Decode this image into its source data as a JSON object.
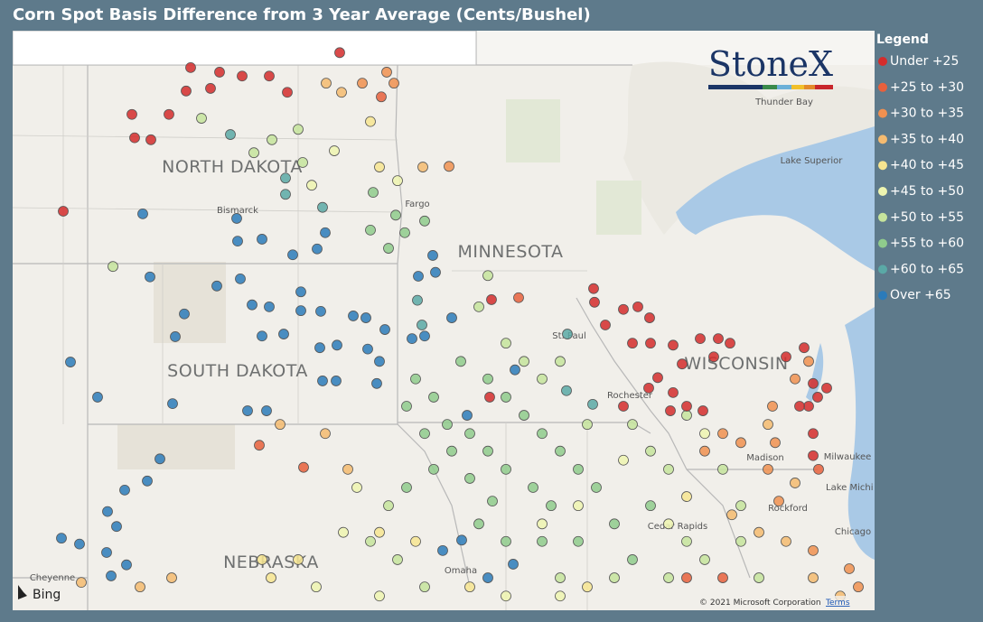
{
  "title": "Corn Spot Basis Difference from 3 Year Average (Cents/Bushel)",
  "legend": {
    "title": "Legend",
    "items": [
      {
        "label": "Under +25",
        "color": "#d42c2c"
      },
      {
        "label": "+25 to +30",
        "color": "#e8603c"
      },
      {
        "label": "+30 to +35",
        "color": "#f09050"
      },
      {
        "label": "+35 to +40",
        "color": "#f5bb70"
      },
      {
        "label": "+40 to +45",
        "color": "#f7e590"
      },
      {
        "label": "+45 to +50",
        "color": "#eef5b0"
      },
      {
        "label": "+50 to +55",
        "color": "#c6e49c"
      },
      {
        "label": "+55 to +60",
        "color": "#8fcb8c"
      },
      {
        "label": "+60 to +65",
        "color": "#5aa9a6"
      },
      {
        "label": "Over +65",
        "color": "#2b7bba"
      }
    ]
  },
  "map": {
    "labels": [
      "NORTH DAKOTA",
      "SOUTH DAKOTA",
      "MINNESOTA",
      "WISCONSIN",
      "NEBRASKA",
      "Bismarck",
      "Fargo",
      "Thunder Bay",
      "Lake Superior",
      "Milwaukee",
      "Lake Michi",
      "Chicago",
      "Cheyenne",
      "Rochester",
      "Madison",
      "Rockford",
      "Cedar Rapids",
      "Omaha",
      "St. Paul"
    ],
    "logo": "StoneX",
    "provider": "Bing",
    "copyright": "© 2021 Microsoft Corporation",
    "terms": "Terms",
    "points": [
      [
        -101.78,
        48.96,
        0
      ],
      [
        -101.14,
        48.89,
        0
      ],
      [
        -101.88,
        48.6,
        0
      ],
      [
        -101.34,
        48.64,
        0
      ],
      [
        -100.64,
        48.83,
        0
      ],
      [
        -100.04,
        48.83,
        0
      ],
      [
        -103.08,
        48.24,
        0
      ],
      [
        -102.26,
        48.24,
        0
      ],
      [
        -103.02,
        47.88,
        0
      ],
      [
        -102.66,
        47.85,
        0
      ],
      [
        -104.6,
        46.75,
        0
      ],
      [
        -98.48,
        49.19,
        0
      ],
      [
        -99.64,
        48.58,
        0
      ],
      [
        -98.78,
        48.72,
        3
      ],
      [
        -98.44,
        48.58,
        3
      ],
      [
        -97.44,
        48.89,
        2
      ],
      [
        -97.98,
        48.72,
        2
      ],
      [
        -97.56,
        48.51,
        1
      ],
      [
        -97.28,
        48.72,
        2
      ],
      [
        -101.54,
        48.18,
        6
      ],
      [
        -100.38,
        47.65,
        6
      ],
      [
        -99.98,
        47.85,
        6
      ],
      [
        -99.4,
        48.01,
        6
      ],
      [
        -99.3,
        47.5,
        6
      ],
      [
        -99.1,
        47.15,
        5
      ],
      [
        -98.6,
        47.68,
        5
      ],
      [
        -97.8,
        48.13,
        4
      ],
      [
        -97.6,
        47.43,
        4
      ],
      [
        -97.2,
        47.22,
        5
      ],
      [
        -96.64,
        47.43,
        3
      ],
      [
        -96.06,
        47.44,
        2
      ],
      [
        -97.74,
        47.04,
        7
      ],
      [
        -97.24,
        46.69,
        7
      ],
      [
        -96.6,
        46.6,
        7
      ],
      [
        -97.8,
        46.46,
        7
      ],
      [
        -97.4,
        46.18,
        7
      ],
      [
        -97.04,
        46.42,
        7
      ],
      [
        -100.9,
        47.93,
        8
      ],
      [
        -99.68,
        47.26,
        8
      ],
      [
        -98.86,
        46.81,
        8
      ],
      [
        -99.68,
        47.01,
        8
      ],
      [
        -103.5,
        45.9,
        6
      ],
      [
        -102.84,
        46.71,
        9
      ],
      [
        -100.76,
        46.64,
        9
      ],
      [
        -100.74,
        46.29,
        9
      ],
      [
        -100.2,
        46.32,
        9
      ],
      [
        -99.52,
        46.08,
        9
      ],
      [
        -98.98,
        46.17,
        9
      ],
      [
        -98.8,
        46.42,
        9
      ],
      [
        -102.68,
        45.74,
        9
      ],
      [
        -101.2,
        45.6,
        9
      ],
      [
        -100.68,
        45.71,
        9
      ],
      [
        -101.92,
        45.17,
        9
      ],
      [
        -102.12,
        44.82,
        9
      ],
      [
        -100.42,
        45.31,
        9
      ],
      [
        -100.04,
        45.28,
        9
      ],
      [
        -99.34,
        45.51,
        9
      ],
      [
        -99.34,
        45.22,
        9
      ],
      [
        -98.9,
        45.21,
        9
      ],
      [
        -98.18,
        45.14,
        9
      ],
      [
        -97.9,
        45.11,
        9
      ],
      [
        -100.2,
        44.83,
        9
      ],
      [
        -99.72,
        44.86,
        9
      ],
      [
        -98.92,
        44.65,
        9
      ],
      [
        -98.54,
        44.69,
        9
      ],
      [
        -97.86,
        44.63,
        9
      ],
      [
        -97.6,
        44.44,
        9
      ],
      [
        -97.48,
        44.93,
        9
      ],
      [
        -96.88,
        44.79,
        9
      ],
      [
        -98.86,
        44.14,
        9
      ],
      [
        -98.56,
        44.14,
        9
      ],
      [
        -97.66,
        44.1,
        9
      ],
      [
        -104.44,
        44.43,
        9
      ],
      [
        -103.84,
        43.89,
        9
      ],
      [
        -102.18,
        43.79,
        9
      ],
      [
        -100.52,
        43.68,
        9
      ],
      [
        -100.1,
        43.68,
        9
      ],
      [
        -102.46,
        42.94,
        9
      ],
      [
        -102.74,
        42.6,
        9
      ],
      [
        -103.24,
        42.46,
        9
      ],
      [
        -103.62,
        42.13,
        9
      ],
      [
        -103.42,
        41.9,
        9
      ],
      [
        -104.64,
        41.72,
        9
      ],
      [
        -104.24,
        41.63,
        9
      ],
      [
        -103.64,
        41.5,
        9
      ],
      [
        -103.54,
        41.14,
        9
      ],
      [
        -103.2,
        41.31,
        9
      ],
      [
        -96.42,
        46.07,
        9
      ],
      [
        -96.36,
        45.81,
        9
      ],
      [
        -96.74,
        45.75,
        9
      ],
      [
        -96.0,
        45.11,
        9
      ],
      [
        -96.6,
        44.83,
        9
      ],
      [
        -94.6,
        44.31,
        9
      ],
      [
        -95.66,
        43.61,
        9
      ],
      [
        -95.2,
        41.11,
        9
      ],
      [
        -94.64,
        41.32,
        9
      ],
      [
        -96.2,
        41.53,
        9
      ],
      [
        -95.78,
        41.69,
        9
      ],
      [
        -96.76,
        45.38,
        8
      ],
      [
        -96.66,
        45.0,
        8
      ],
      [
        -93.46,
        43.99,
        8
      ],
      [
        -92.88,
        43.78,
        8
      ],
      [
        -93.44,
        44.86,
        8
      ],
      [
        -96.8,
        44.17,
        7
      ],
      [
        -96.4,
        43.89,
        7
      ],
      [
        -96.1,
        43.47,
        7
      ],
      [
        -95.6,
        43.33,
        7
      ],
      [
        -95.2,
        43.06,
        7
      ],
      [
        -94.8,
        42.78,
        7
      ],
      [
        -96.6,
        43.33,
        7
      ],
      [
        -96.0,
        43.06,
        7
      ],
      [
        -95.6,
        42.64,
        7
      ],
      [
        -95.1,
        42.29,
        7
      ],
      [
        -94.4,
        43.61,
        7
      ],
      [
        -94.0,
        43.33,
        7
      ],
      [
        -93.6,
        43.06,
        7
      ],
      [
        -94.2,
        42.5,
        7
      ],
      [
        -93.8,
        42.22,
        7
      ],
      [
        -93.2,
        42.78,
        7
      ],
      [
        -92.8,
        42.5,
        7
      ],
      [
        -96.4,
        42.78,
        7
      ],
      [
        -97.0,
        42.5,
        7
      ],
      [
        -95.4,
        41.94,
        7
      ],
      [
        -94.8,
        41.67,
        7
      ],
      [
        -94.0,
        41.67,
        7
      ],
      [
        -93.2,
        41.67,
        7
      ],
      [
        -92.4,
        41.94,
        7
      ],
      [
        -92.0,
        41.39,
        7
      ],
      [
        -91.6,
        42.22,
        7
      ],
      [
        -97.0,
        43.75,
        7
      ],
      [
        -95.8,
        44.44,
        7
      ],
      [
        -95.2,
        44.17,
        7
      ],
      [
        -94.8,
        43.89,
        7
      ],
      [
        -97.4,
        42.22,
        6
      ],
      [
        -97.8,
        41.67,
        6
      ],
      [
        -97.2,
        41.39,
        6
      ],
      [
        -96.6,
        40.97,
        6
      ],
      [
        -93.6,
        41.11,
        6
      ],
      [
        -92.4,
        41.11,
        6
      ],
      [
        -91.2,
        41.11,
        6
      ],
      [
        -90.8,
        41.67,
        6
      ],
      [
        -90.4,
        41.39,
        6
      ],
      [
        -89.6,
        41.67,
        6
      ],
      [
        -89.2,
        41.11,
        6
      ],
      [
        -92.0,
        43.47,
        6
      ],
      [
        -91.6,
        43.06,
        6
      ],
      [
        -91.2,
        42.78,
        6
      ],
      [
        -93.0,
        43.47,
        6
      ],
      [
        -94.0,
        44.17,
        6
      ],
      [
        -93.6,
        44.44,
        6
      ],
      [
        -95.4,
        45.28,
        6
      ],
      [
        -95.2,
        45.76,
        6
      ],
      [
        -94.8,
        44.72,
        6
      ],
      [
        -94.4,
        44.44,
        6
      ],
      [
        -90.8,
        43.61,
        6
      ],
      [
        -89.6,
        42.22,
        6
      ],
      [
        -90.0,
        42.78,
        6
      ],
      [
        -98.1,
        42.5,
        5
      ],
      [
        -98.4,
        41.81,
        5
      ],
      [
        -99.0,
        40.97,
        5
      ],
      [
        -97.6,
        40.83,
        5
      ],
      [
        -94.8,
        40.83,
        5
      ],
      [
        -92.2,
        42.92,
        5
      ],
      [
        -91.2,
        41.94,
        5
      ],
      [
        -93.2,
        42.22,
        5
      ],
      [
        -94.0,
        41.94,
        5
      ],
      [
        -90.4,
        43.33,
        5
      ],
      [
        -93.6,
        40.83,
        5
      ],
      [
        -99.4,
        41.39,
        4
      ],
      [
        -100.0,
        41.11,
        4
      ],
      [
        -100.2,
        41.39,
        4
      ],
      [
        -97.6,
        41.81,
        4
      ],
      [
        -96.8,
        41.67,
        4
      ],
      [
        -95.6,
        40.97,
        4
      ],
      [
        -93.0,
        40.97,
        4
      ],
      [
        -90.8,
        42.36,
        4
      ],
      [
        -102.2,
        41.11,
        3
      ],
      [
        -102.9,
        40.97,
        3
      ],
      [
        -104.2,
        41.04,
        3
      ],
      [
        -99.8,
        43.47,
        3
      ],
      [
        -98.8,
        43.33,
        3
      ],
      [
        -98.3,
        42.78,
        3
      ],
      [
        -89.0,
        43.47,
        3
      ],
      [
        -88.4,
        42.57,
        3
      ],
      [
        -88.0,
        41.11,
        3
      ],
      [
        -87.4,
        40.83,
        3
      ],
      [
        -89.8,
        42.08,
        3
      ],
      [
        -89.2,
        41.81,
        3
      ],
      [
        -88.6,
        41.67,
        3
      ],
      [
        -88.9,
        43.75,
        2
      ],
      [
        -88.84,
        43.19,
        2
      ],
      [
        -89.0,
        42.78,
        2
      ],
      [
        -90.0,
        43.33,
        2
      ],
      [
        -89.6,
        43.19,
        2
      ],
      [
        -90.4,
        43.06,
        2
      ],
      [
        -88.76,
        42.29,
        2
      ],
      [
        -88.0,
        41.53,
        2
      ],
      [
        -87.2,
        41.25,
        2
      ],
      [
        -87.0,
        40.97,
        2
      ],
      [
        -88.4,
        44.17,
        2
      ],
      [
        -88.1,
        44.44,
        2
      ],
      [
        -100.26,
        43.15,
        1
      ],
      [
        -99.28,
        42.81,
        1
      ],
      [
        -94.52,
        45.42,
        1
      ],
      [
        -90.8,
        41.11,
        1
      ],
      [
        -90.0,
        41.11,
        1
      ],
      [
        -87.88,
        42.78,
        1
      ],
      [
        -95.12,
        45.39,
        0
      ],
      [
        -92.86,
        45.56,
        0
      ],
      [
        -92.84,
        45.35,
        0
      ],
      [
        -92.2,
        45.24,
        0
      ],
      [
        -91.88,
        45.28,
        0
      ],
      [
        -91.62,
        45.11,
        0
      ],
      [
        -92.6,
        45.0,
        0
      ],
      [
        -92.0,
        44.72,
        0
      ],
      [
        -91.6,
        44.72,
        0
      ],
      [
        -91.1,
        44.69,
        0
      ],
      [
        -90.5,
        44.79,
        0
      ],
      [
        -90.1,
        44.79,
        0
      ],
      [
        -89.84,
        44.72,
        0
      ],
      [
        -90.2,
        44.51,
        0
      ],
      [
        -88.6,
        44.51,
        0
      ],
      [
        -88.2,
        44.65,
        0
      ],
      [
        -88.0,
        44.1,
        0
      ],
      [
        -87.9,
        43.89,
        0
      ],
      [
        -87.7,
        44.03,
        0
      ],
      [
        -88.1,
        43.75,
        0
      ],
      [
        -91.44,
        44.19,
        0
      ],
      [
        -91.1,
        43.96,
        0
      ],
      [
        -91.16,
        43.68,
        0
      ],
      [
        -91.64,
        44.03,
        0
      ],
      [
        -92.2,
        43.75,
        0
      ],
      [
        -90.8,
        43.75,
        0
      ],
      [
        -90.44,
        43.68,
        0
      ],
      [
        -95.16,
        43.89,
        0
      ],
      [
        -88.0,
        43.33,
        0
      ],
      [
        -88.0,
        42.99,
        0
      ],
      [
        -88.3,
        43.75,
        0
      ],
      [
        -90.9,
        44.4,
        0
      ]
    ]
  }
}
